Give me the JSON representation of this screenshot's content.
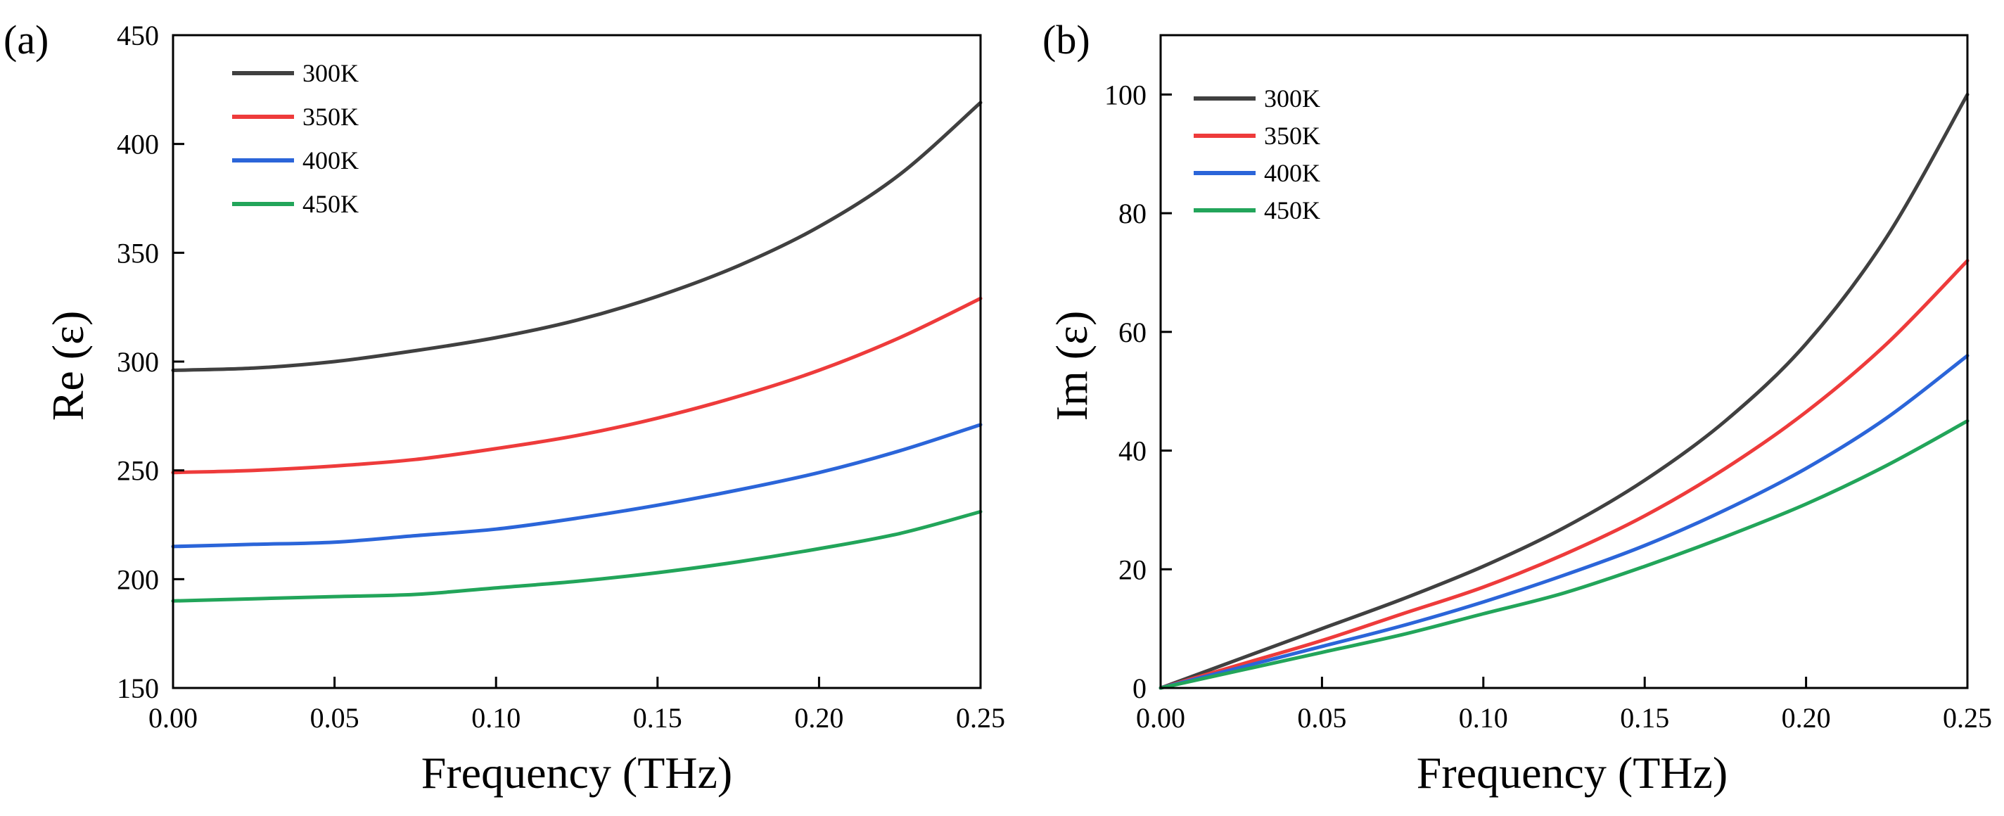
{
  "figure": {
    "panels": [
      "(a)",
      "(b)"
    ]
  },
  "chart_data": [
    {
      "panel_label": "(a)",
      "type": "line",
      "title": "",
      "xlabel": "Frequency (THz)",
      "ylabel": "Re (ε)",
      "xlim": [
        0.0,
        0.25
      ],
      "ylim": [
        150,
        450
      ],
      "xticks": [
        0.0,
        0.05,
        0.1,
        0.15,
        0.2,
        0.25
      ],
      "xtick_labels": [
        "0.00",
        "0.05",
        "0.10",
        "0.15",
        "0.20",
        "0.25"
      ],
      "yticks": [
        150,
        200,
        250,
        300,
        350,
        400,
        450
      ],
      "ytick_labels": [
        "150",
        "200",
        "250",
        "300",
        "350",
        "400",
        "450"
      ],
      "grid": false,
      "legend_position": "top-left",
      "x": [
        0.0,
        0.025,
        0.05,
        0.075,
        0.1,
        0.125,
        0.15,
        0.175,
        0.2,
        0.225,
        0.25
      ],
      "series": [
        {
          "name": "300K",
          "color": "#404040",
          "values": [
            296,
            297,
            300,
            305,
            311,
            319,
            330,
            344,
            362,
            386,
            419
          ]
        },
        {
          "name": "350K",
          "color": "#ee3b3b",
          "values": [
            249,
            250,
            252,
            255,
            260,
            266,
            274,
            284,
            296,
            311,
            329
          ]
        },
        {
          "name": "400K",
          "color": "#2b65d9",
          "values": [
            215,
            216,
            217,
            220,
            223,
            228,
            234,
            241,
            249,
            259,
            271
          ]
        },
        {
          "name": "450K",
          "color": "#22a55a",
          "values": [
            190,
            191,
            192,
            193,
            196,
            199,
            203,
            208,
            214,
            221,
            231
          ]
        }
      ]
    },
    {
      "panel_label": "(b)",
      "type": "line",
      "title": "",
      "xlabel": "Frequency (THz)",
      "ylabel": "Im (ε)",
      "xlim": [
        0.0,
        0.25
      ],
      "ylim": [
        0,
        110
      ],
      "xticks": [
        0.0,
        0.05,
        0.1,
        0.15,
        0.2,
        0.25
      ],
      "xtick_labels": [
        "0.00",
        "0.05",
        "0.10",
        "0.15",
        "0.20",
        "0.25"
      ],
      "yticks": [
        0,
        20,
        40,
        60,
        80,
        100
      ],
      "ytick_labels": [
        "0",
        "20",
        "40",
        "60",
        "80",
        "100"
      ],
      "grid": false,
      "legend_position": "top-left",
      "x": [
        0.0,
        0.025,
        0.05,
        0.075,
        0.1,
        0.125,
        0.15,
        0.175,
        0.2,
        0.225,
        0.25
      ],
      "series": [
        {
          "name": "300K",
          "color": "#404040",
          "values": [
            0,
            5,
            10,
            15,
            20.5,
            27,
            35,
            45,
            58,
            76,
            100
          ]
        },
        {
          "name": "350K",
          "color": "#ee3b3b",
          "values": [
            0,
            4,
            8,
            12.5,
            17,
            22.5,
            29,
            37,
            46.5,
            58,
            72
          ]
        },
        {
          "name": "400K",
          "color": "#2b65d9",
          "values": [
            0,
            3.5,
            7,
            10.5,
            14.5,
            19,
            24,
            30,
            37,
            45.5,
            56
          ]
        },
        {
          "name": "450K",
          "color": "#22a55a",
          "values": [
            0,
            3,
            6,
            9,
            12.5,
            16,
            20.5,
            25.5,
            31,
            37.5,
            45
          ]
        }
      ]
    }
  ]
}
